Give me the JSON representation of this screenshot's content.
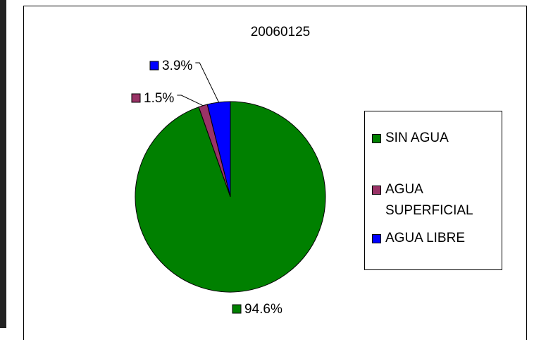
{
  "chart_data": {
    "type": "pie",
    "title": "20060125",
    "categories": [
      "SIN AGUA",
      "AGUA SUPERFICIAL",
      "AGUA LIBRE"
    ],
    "values": [
      94.6,
      1.5,
      3.9
    ],
    "value_labels": [
      "94.6%",
      "1.5%",
      "3.9%"
    ],
    "colors": [
      "#008000",
      "#993366",
      "#0000ff"
    ],
    "legend": "right"
  }
}
